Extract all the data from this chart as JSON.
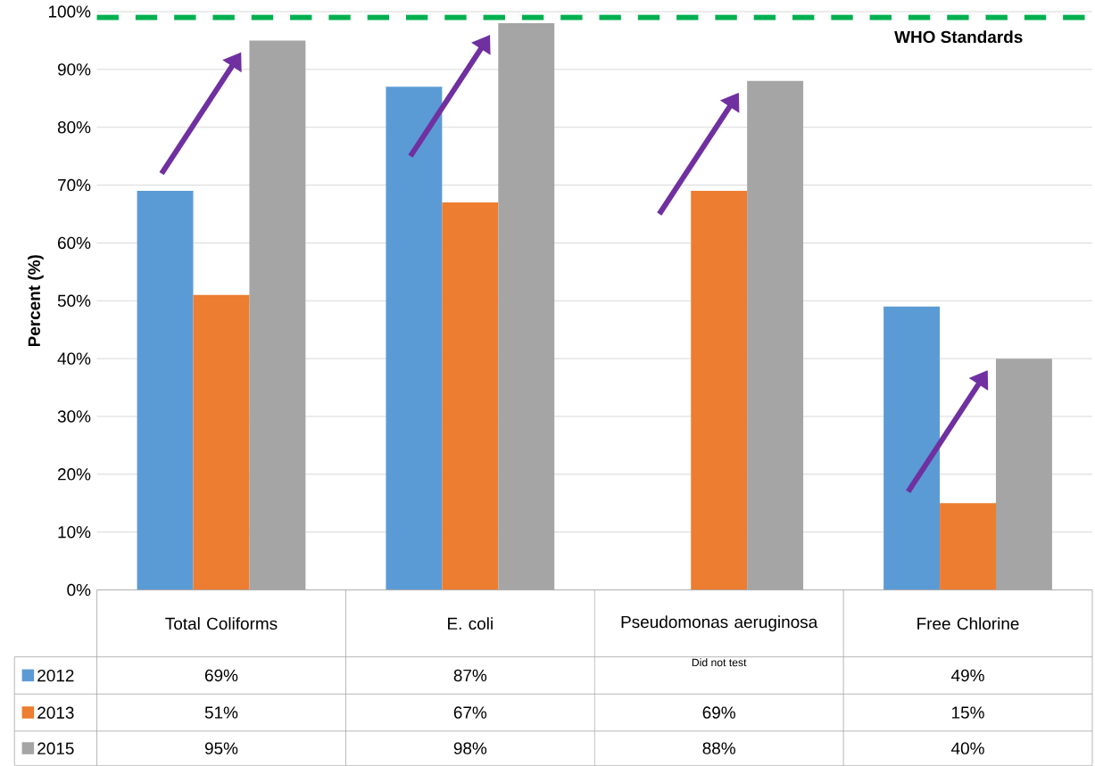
{
  "chart_data": {
    "type": "bar",
    "ylabel": "Percent (%)",
    "categories": [
      "Total Coliforms",
      "E. coli",
      "Pseudomonas aeruginosa",
      "Free Chlorine"
    ],
    "series": [
      {
        "name": "2012",
        "color": "#5b9bd5",
        "values": [
          69,
          87,
          null,
          49
        ],
        "value_labels": [
          "69%",
          "87%",
          null,
          "49%"
        ]
      },
      {
        "name": "2013",
        "color": "#ed7d31",
        "values": [
          51,
          67,
          69,
          15
        ],
        "value_labels": [
          "51%",
          "67%",
          "69%",
          "15%"
        ]
      },
      {
        "name": "2015",
        "color": "#a5a5a5",
        "values": [
          95,
          98,
          88,
          40
        ],
        "value_labels": [
          "95%",
          "98%",
          "88%",
          "40%"
        ]
      }
    ],
    "ylim": [
      0,
      100
    ],
    "yticks": [
      {
        "value": 0,
        "label": "0%"
      },
      {
        "value": 10,
        "label": "10%"
      },
      {
        "value": 20,
        "label": "20%"
      },
      {
        "value": 30,
        "label": "30%"
      },
      {
        "value": 40,
        "label": "40%"
      },
      {
        "value": 50,
        "label": "50%"
      },
      {
        "value": 60,
        "label": "60%"
      },
      {
        "value": 70,
        "label": "70%"
      },
      {
        "value": 80,
        "label": "80%"
      },
      {
        "value": 90,
        "label": "90%"
      },
      {
        "value": 100,
        "label": "100%"
      }
    ],
    "grid": "y",
    "legend": "bottom",
    "ref_lines": [
      {
        "axis": "y",
        "value": 99,
        "label": "WHO Standards",
        "color": "#00b050",
        "line_style": "dashed"
      }
    ],
    "annotations": [
      "Did not test"
    ]
  }
}
